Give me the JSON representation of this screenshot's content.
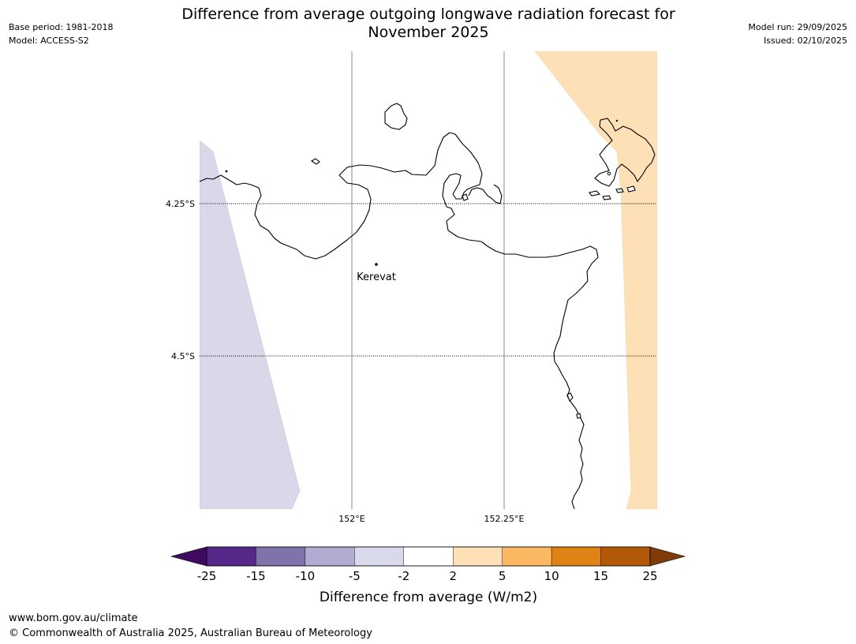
{
  "header": {
    "title_line1": "Difference from average outgoing longwave radiation forecast for",
    "title_line2": "November 2025",
    "base_period": "Base period: 1981-2018",
    "model": "Model: ACCESS-S2",
    "model_run": "Model run: 29/09/2025",
    "issued": "Issued: 02/10/2025"
  },
  "map": {
    "lat_labels": [
      "4.25°S",
      "4.5°S"
    ],
    "lon_labels": [
      "152°E",
      "152.25°E"
    ],
    "place": {
      "name": "Kerevat"
    },
    "colors": {
      "negative_fill": "#d8d8e9",
      "positive_fill": "#fde0b6",
      "coast": "#000000",
      "grid": "#888888"
    }
  },
  "colorbar": {
    "label": "Difference from average (W/m2)",
    "ticks": [
      "-25",
      "-15",
      "-10",
      "-5",
      "-2",
      "2",
      "5",
      "10",
      "15",
      "25"
    ],
    "colors": [
      "#3f0a61",
      "#542788",
      "#8073ac",
      "#b2abd2",
      "#d8daeb",
      "#ffffff",
      "#fee0b6",
      "#fdb863",
      "#e08214",
      "#b35806",
      "#7f3b08"
    ]
  },
  "footer": {
    "url": "www.bom.gov.au/climate",
    "copyright": "© Commonwealth of Australia 2025, Australian Bureau of Meteorology"
  }
}
